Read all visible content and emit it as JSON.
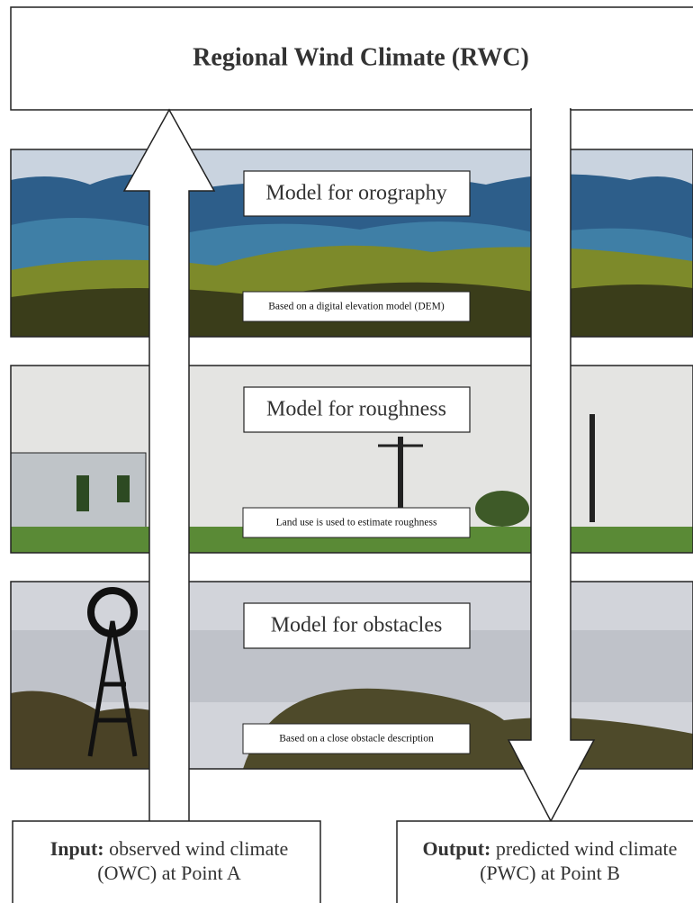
{
  "header": {
    "title": "Regional Wind Climate (RWC)"
  },
  "panels": [
    {
      "title": "Model for orography",
      "caption": "Based on a digital elevation model (DEM)"
    },
    {
      "title": "Model for roughness",
      "caption": "Land use is used to estimate roughness"
    },
    {
      "title": "Model for obstacles",
      "caption": "Based on a close obstacle description"
    }
  ],
  "input": {
    "label": "Input:",
    "text_line1": "observed wind climate",
    "text_line2": "(OWC) at Point A"
  },
  "output": {
    "label": "Output:",
    "text_line1": "predicted wind climate",
    "text_line2": "(PWC) at Point B"
  }
}
